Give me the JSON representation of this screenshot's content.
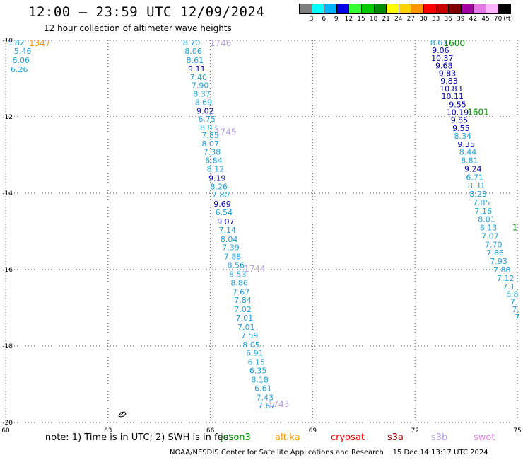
{
  "header": {
    "title": "12:00 – 23:59 UTC 12/09/2024",
    "subtitle": "12 hour collection of altimeter wave heights"
  },
  "colorbar": {
    "unit": "(ft)",
    "swatches": [
      {
        "label": "3",
        "color": "#7f7f7f"
      },
      {
        "label": "6",
        "color": "#00ffff"
      },
      {
        "label": "9",
        "color": "#00b3ff"
      },
      {
        "label": "12",
        "color": "#0000e6"
      },
      {
        "label": "15",
        "color": "#33ff33"
      },
      {
        "label": "18",
        "color": "#00c800"
      },
      {
        "label": "21",
        "color": "#008c00"
      },
      {
        "label": "24",
        "color": "#ffff00"
      },
      {
        "label": "27",
        "color": "#ffd200"
      },
      {
        "label": "30",
        "color": "#ff9600"
      },
      {
        "label": "33",
        "color": "#ff0000"
      },
      {
        "label": "36",
        "color": "#c80000"
      },
      {
        "label": "39",
        "color": "#800000"
      },
      {
        "label": "42",
        "color": "#a000a0"
      },
      {
        "label": "45",
        "color": "#e678e6"
      },
      {
        "label": "70",
        "color": "#ffb4ff"
      },
      {
        "label": "",
        "color": "#000000"
      }
    ]
  },
  "chart_data": {
    "type": "scatter",
    "xlim": [
      60,
      75
    ],
    "ylim": [
      -20,
      -10
    ],
    "x_ticks": [
      "60",
      "63",
      "66",
      "69",
      "72",
      "75"
    ],
    "y_ticks": [
      "-10",
      "-12",
      "-14",
      "-16",
      "-18",
      "-20"
    ],
    "grid": true,
    "colors": {
      "light": "#1ea0dc",
      "dark": "#0000b4"
    },
    "series": [
      {
        "points": [
          {
            "x": 60.3,
            "y": -10.06,
            "v": "5.82",
            "c": "light"
          },
          {
            "x": 60.5,
            "y": -10.28,
            "v": "5.46",
            "c": "light"
          },
          {
            "x": 60.45,
            "y": -10.52,
            "v": "6.06",
            "c": "light"
          },
          {
            "x": 60.4,
            "y": -10.76,
            "v": "6.26",
            "c": "light"
          }
        ]
      },
      {
        "points": [
          {
            "x": 65.45,
            "y": -10.06,
            "v": "8.70",
            "c": "light"
          },
          {
            "x": 65.5,
            "y": -10.28,
            "v": "8.06",
            "c": "light"
          },
          {
            "x": 65.55,
            "y": -10.52,
            "v": "8.61",
            "c": "light"
          },
          {
            "x": 65.6,
            "y": -10.74,
            "v": "9.11",
            "c": "dark"
          },
          {
            "x": 65.65,
            "y": -10.96,
            "v": "7.40",
            "c": "light"
          },
          {
            "x": 65.7,
            "y": -11.18,
            "v": "7.90",
            "c": "light"
          },
          {
            "x": 65.75,
            "y": -11.4,
            "v": "8.37",
            "c": "light"
          },
          {
            "x": 65.8,
            "y": -11.62,
            "v": "8.69",
            "c": "light"
          },
          {
            "x": 65.85,
            "y": -11.84,
            "v": "9.02",
            "c": "dark"
          },
          {
            "x": 65.9,
            "y": -12.06,
            "v": "6.75",
            "c": "light"
          },
          {
            "x": 65.95,
            "y": -12.28,
            "v": "8.83",
            "c": "light"
          },
          {
            "x": 66.0,
            "y": -12.48,
            "v": "7.85",
            "c": "light"
          },
          {
            "x": 66.0,
            "y": -12.7,
            "v": "8.07",
            "c": "light"
          },
          {
            "x": 66.05,
            "y": -12.92,
            "v": "7.38",
            "c": "light"
          },
          {
            "x": 66.1,
            "y": -13.14,
            "v": "6.84",
            "c": "light"
          },
          {
            "x": 66.15,
            "y": -13.36,
            "v": "8.12",
            "c": "light"
          },
          {
            "x": 66.2,
            "y": -13.6,
            "v": "9.19",
            "c": "dark"
          },
          {
            "x": 66.25,
            "y": -13.82,
            "v": "8.26",
            "c": "light"
          },
          {
            "x": 66.3,
            "y": -14.04,
            "v": "7.80",
            "c": "light"
          },
          {
            "x": 66.35,
            "y": -14.28,
            "v": "9.69",
            "c": "dark"
          },
          {
            "x": 66.4,
            "y": -14.5,
            "v": "6.54",
            "c": "light"
          },
          {
            "x": 66.45,
            "y": -14.74,
            "v": "9.07",
            "c": "dark"
          },
          {
            "x": 66.5,
            "y": -14.96,
            "v": "7.14",
            "c": "light"
          },
          {
            "x": 66.55,
            "y": -15.2,
            "v": "8.04",
            "c": "light"
          },
          {
            "x": 66.6,
            "y": -15.42,
            "v": "7.39",
            "c": "light"
          },
          {
            "x": 66.65,
            "y": -15.66,
            "v": "7.88",
            "c": "light"
          },
          {
            "x": 66.75,
            "y": -15.88,
            "v": "8.56",
            "c": "light"
          },
          {
            "x": 66.8,
            "y": -16.12,
            "v": "8.53",
            "c": "light"
          },
          {
            "x": 66.85,
            "y": -16.34,
            "v": "8.86",
            "c": "light"
          },
          {
            "x": 66.9,
            "y": -16.58,
            "v": "7.67",
            "c": "light"
          },
          {
            "x": 66.95,
            "y": -16.8,
            "v": "7.84",
            "c": "light"
          },
          {
            "x": 66.95,
            "y": -17.04,
            "v": "7.02",
            "c": "light"
          },
          {
            "x": 67.0,
            "y": -17.26,
            "v": "7.01",
            "c": "light"
          },
          {
            "x": 67.05,
            "y": -17.5,
            "v": "7.01",
            "c": "light"
          },
          {
            "x": 67.15,
            "y": -17.72,
            "v": "7.59",
            "c": "light"
          },
          {
            "x": 67.2,
            "y": -17.96,
            "v": "8.05",
            "c": "light"
          },
          {
            "x": 67.3,
            "y": -18.18,
            "v": "6.91",
            "c": "light"
          },
          {
            "x": 67.35,
            "y": -18.42,
            "v": "6.15",
            "c": "light"
          },
          {
            "x": 67.4,
            "y": -18.64,
            "v": "6.35",
            "c": "light"
          },
          {
            "x": 67.45,
            "y": -18.88,
            "v": "8.18",
            "c": "light"
          },
          {
            "x": 67.55,
            "y": -19.1,
            "v": "6.61",
            "c": "light"
          },
          {
            "x": 67.6,
            "y": -19.34,
            "v": "7.43",
            "c": "light"
          },
          {
            "x": 67.65,
            "y": -19.56,
            "v": "7.67",
            "c": "light"
          }
        ]
      },
      {
        "points": [
          {
            "x": 72.7,
            "y": -10.06,
            "v": "8.67",
            "c": "light"
          },
          {
            "x": 72.75,
            "y": -10.26,
            "v": "9.06",
            "c": "dark"
          },
          {
            "x": 72.8,
            "y": -10.46,
            "v": "10.37",
            "c": "dark"
          },
          {
            "x": 72.85,
            "y": -10.66,
            "v": "9.68",
            "c": "dark"
          },
          {
            "x": 72.95,
            "y": -10.86,
            "v": "9.83",
            "c": "dark"
          },
          {
            "x": 73.0,
            "y": -11.06,
            "v": "9.83",
            "c": "dark"
          },
          {
            "x": 73.05,
            "y": -11.26,
            "v": "10.83",
            "c": "dark"
          },
          {
            "x": 73.1,
            "y": -11.46,
            "v": "10.11",
            "c": "dark"
          },
          {
            "x": 73.25,
            "y": -11.68,
            "v": "9.55",
            "c": "dark"
          },
          {
            "x": 73.25,
            "y": -11.88,
            "v": "10.19",
            "c": "dark"
          },
          {
            "x": 73.3,
            "y": -12.08,
            "v": "9.85",
            "c": "dark"
          },
          {
            "x": 73.35,
            "y": -12.3,
            "v": "9.55",
            "c": "dark"
          },
          {
            "x": 73.4,
            "y": -12.5,
            "v": "8.34",
            "c": "light"
          },
          {
            "x": 73.5,
            "y": -12.72,
            "v": "9.35",
            "c": "dark"
          },
          {
            "x": 73.55,
            "y": -12.92,
            "v": "8.44",
            "c": "light"
          },
          {
            "x": 73.6,
            "y": -13.14,
            "v": "8.81",
            "c": "light"
          },
          {
            "x": 73.7,
            "y": -13.36,
            "v": "9.24",
            "c": "dark"
          },
          {
            "x": 73.75,
            "y": -13.58,
            "v": "6.71",
            "c": "light"
          },
          {
            "x": 73.8,
            "y": -13.8,
            "v": "8.31",
            "c": "light"
          },
          {
            "x": 73.85,
            "y": -14.02,
            "v": "8.23",
            "c": "light"
          },
          {
            "x": 73.95,
            "y": -14.24,
            "v": "7.85",
            "c": "light"
          },
          {
            "x": 74.0,
            "y": -14.46,
            "v": "7.16",
            "c": "light"
          },
          {
            "x": 74.1,
            "y": -14.68,
            "v": "8.01",
            "c": "light"
          },
          {
            "x": 74.15,
            "y": -14.9,
            "v": "8.13",
            "c": "light"
          },
          {
            "x": 74.2,
            "y": -15.12,
            "v": "7.07",
            "c": "light"
          },
          {
            "x": 74.3,
            "y": -15.34,
            "v": "7.70",
            "c": "light"
          },
          {
            "x": 74.35,
            "y": -15.56,
            "v": "7.86",
            "c": "light"
          },
          {
            "x": 74.45,
            "y": -15.78,
            "v": "7.93",
            "c": "light"
          },
          {
            "x": 74.55,
            "y": -16.0,
            "v": "7.88",
            "c": "light"
          },
          {
            "x": 74.65,
            "y": -16.22,
            "v": "7.12",
            "c": "light"
          },
          {
            "x": 74.75,
            "y": -16.44,
            "v": "7.1",
            "c": "light"
          },
          {
            "x": 74.85,
            "y": -16.64,
            "v": "6.8",
            "c": "light"
          },
          {
            "x": 74.9,
            "y": -16.84,
            "v": "7.",
            "c": "light"
          },
          {
            "x": 74.95,
            "y": -17.04,
            "v": "7.",
            "c": "light"
          },
          {
            "x": 75.0,
            "y": -17.24,
            "v": "7",
            "c": "light"
          }
        ]
      }
    ],
    "pass_times": [
      {
        "x": 61.0,
        "y": -10.06,
        "text": "1347",
        "color": "#ff9600"
      },
      {
        "x": 66.3,
        "y": -10.06,
        "text": "1746",
        "color": "#b4a0e6"
      },
      {
        "x": 66.45,
        "y": -12.38,
        "text": "1745",
        "color": "#b4a0e6"
      },
      {
        "x": 67.3,
        "y": -15.96,
        "text": "1744",
        "color": "#b4a0e6"
      },
      {
        "x": 68.0,
        "y": -19.5,
        "text": "1743",
        "color": "#b4a0e6"
      },
      {
        "x": 73.15,
        "y": -10.06,
        "text": "1600",
        "color": "#008c00"
      },
      {
        "x": 73.85,
        "y": -11.86,
        "text": "1601",
        "color": "#008c00"
      },
      {
        "x": 74.93,
        "y": -14.88,
        "text": "1",
        "color": "#008c00"
      }
    ]
  },
  "legend": {
    "note": "note: 1) Time is in UTC; 2) SWH is in feet",
    "satellites": [
      {
        "name": "jason3",
        "color": "#008c00"
      },
      {
        "name": "altika",
        "color": "#ff9600"
      },
      {
        "name": "cryosat",
        "color": "#ff0000"
      },
      {
        "name": "s3a",
        "color": "#a00000"
      },
      {
        "name": "s3b",
        "color": "#b4a0e6"
      },
      {
        "name": "swot",
        "color": "#e678e6"
      }
    ]
  },
  "footer": {
    "credit": "NOAA/NESDIS Center for Satellite Applications and Research",
    "timestamp": "15 Dec 14:13:17 UTC 2024"
  }
}
